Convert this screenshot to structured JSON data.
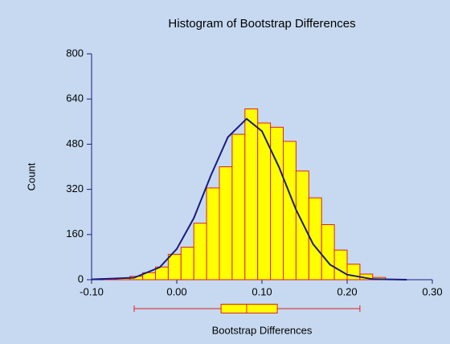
{
  "chart_data": {
    "type": "histogram",
    "title": "Histogram of Bootstrap Differences",
    "xlabel": "Bootstrap Differences",
    "ylabel": "Count",
    "bins": [
      -0.085,
      -0.07,
      -0.055,
      -0.04,
      -0.025,
      -0.01,
      0.005,
      0.02,
      0.035,
      0.05,
      0.065,
      0.08,
      0.095,
      0.11,
      0.125,
      0.14,
      0.155,
      0.17,
      0.185,
      0.2,
      0.215,
      0.23,
      0.245
    ],
    "counts": [
      2,
      5,
      12,
      25,
      45,
      90,
      115,
      200,
      325,
      400,
      515,
      605,
      555,
      540,
      490,
      385,
      290,
      195,
      105,
      55,
      20,
      8
    ],
    "color": "#ffff00",
    "edgecolor": "#e02020",
    "xlim": [
      -0.1,
      0.3
    ],
    "xticks": [
      {
        "value": -0.1,
        "label": "-0.10"
      },
      {
        "value": 0,
        "label": "0.00"
      },
      {
        "value": 0.1,
        "label": "0.10"
      },
      {
        "value": 0.2,
        "label": "0.20"
      },
      {
        "value": 0.3,
        "label": "0.30"
      }
    ],
    "ylim": [
      0,
      800
    ],
    "yticks": [
      0,
      160,
      320,
      480,
      640,
      800
    ],
    "density_curve": {
      "color": "#1a1a80",
      "x": [
        -0.1,
        -0.05,
        -0.02,
        0,
        0.02,
        0.04,
        0.06,
        0.082,
        0.1,
        0.12,
        0.14,
        0.16,
        0.18,
        0.2,
        0.23,
        0.27
      ],
      "y": [
        1,
        7,
        44,
        109,
        218,
        369,
        505,
        570,
        526,
        399,
        248,
        126,
        53,
        18,
        2,
        0
      ]
    },
    "box_plot": {
      "whisker_low": -0.05,
      "q1": 0.052,
      "median": 0.082,
      "q3": 0.118,
      "whisker_high": 0.215,
      "color": "#ffff00",
      "edgecolor": "#e02020"
    }
  }
}
